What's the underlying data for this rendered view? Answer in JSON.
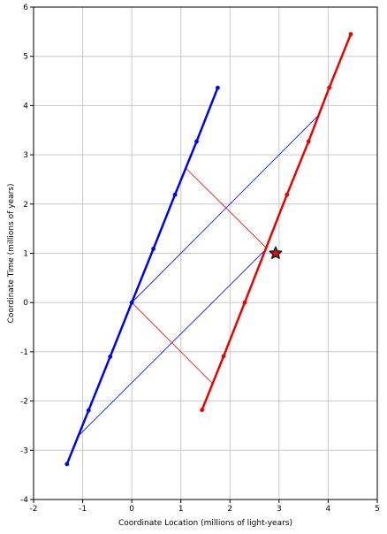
{
  "chart_data": {
    "type": "line",
    "title": "",
    "xlabel": "Coordinate Location (millions of light-years)",
    "ylabel": "Coordinate Time (millions of years)",
    "xlim": [
      -2,
      5
    ],
    "ylim": [
      -4,
      6
    ],
    "x_ticks": [
      -2,
      -1,
      0,
      1,
      2,
      3,
      4,
      5
    ],
    "y_ticks": [
      -4,
      -3,
      -2,
      -1,
      0,
      1,
      2,
      3,
      4,
      5,
      6
    ],
    "grid": true,
    "colors": {
      "blue": "#0000ee",
      "red": "#ee0000",
      "grid": "#c8c8c8",
      "marker_fill": "#dd1111",
      "marker_stroke": "#222222"
    },
    "series": [
      {
        "color": "#0000ee",
        "points": [
          {
            "x": -1.32,
            "y": -3.28
          },
          {
            "x": -0.88,
            "y": -2.19
          },
          {
            "x": -0.44,
            "y": -1.1
          },
          {
            "x": 0.0,
            "y": 0.0
          },
          {
            "x": 0.44,
            "y": 1.09
          },
          {
            "x": 0.88,
            "y": 2.19
          },
          {
            "x": 1.32,
            "y": 3.27
          },
          {
            "x": 1.75,
            "y": 4.36
          }
        ]
      },
      {
        "color": "#ee0000",
        "points": [
          {
            "x": 1.43,
            "y": -2.18
          },
          {
            "x": 1.87,
            "y": -1.09
          },
          {
            "x": 2.3,
            "y": 0.0
          },
          {
            "x": 3.16,
            "y": 2.19
          },
          {
            "x": 3.6,
            "y": 3.27
          },
          {
            "x": 4.02,
            "y": 4.36
          },
          {
            "x": 4.46,
            "y": 5.45
          }
        ]
      }
    ],
    "light_rays": [
      {
        "color": "#0000ee",
        "points": [
          {
            "x": -1.08,
            "y": -2.7
          },
          {
            "x": 2.75,
            "y": 1.1
          }
        ]
      },
      {
        "color": "#0000ee",
        "points": [
          {
            "x": 0.0,
            "y": 0.0
          },
          {
            "x": 3.8,
            "y": 3.8
          }
        ]
      },
      {
        "color": "#ee0000",
        "points": [
          {
            "x": 0.0,
            "y": 0.0
          },
          {
            "x": 1.63,
            "y": -1.63
          }
        ]
      },
      {
        "color": "#ee0000",
        "points": [
          {
            "x": 1.1,
            "y": 2.73
          },
          {
            "x": 2.75,
            "y": 1.1
          }
        ]
      }
    ],
    "event_marker": {
      "x": 2.93,
      "y": 1.0,
      "shape": "star"
    }
  }
}
